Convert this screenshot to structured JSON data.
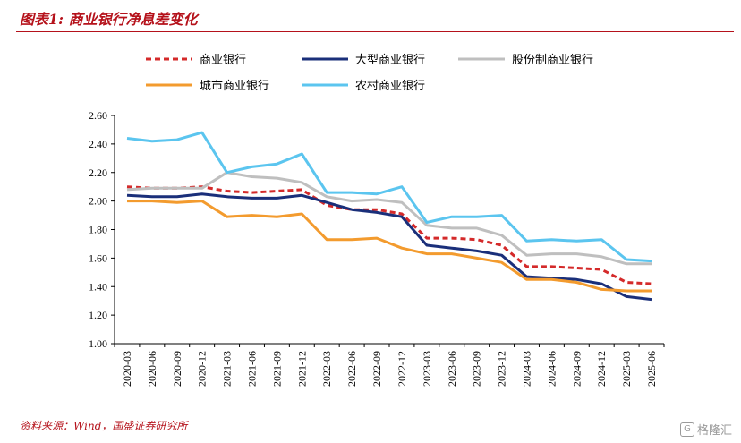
{
  "header": {
    "title": "图表1:  商业银行净息差变化"
  },
  "footer": {
    "source": "资料来源：Wind，国盛证券研究所",
    "watermark": "格隆汇"
  },
  "chart_data": {
    "type": "line",
    "title": "",
    "xlabel": "",
    "ylabel": "",
    "ylim": [
      1.0,
      2.6
    ],
    "yticks": [
      "1.00",
      "1.20",
      "1.40",
      "1.60",
      "1.80",
      "2.00",
      "2.20",
      "2.40",
      "2.60"
    ],
    "grid": false,
    "legend_position": "top",
    "categories": [
      "2020-03",
      "2020-06",
      "2020-09",
      "2020-12",
      "2021-03",
      "2021-06",
      "2021-09",
      "2021-12",
      "2022-03",
      "2022-06",
      "2022-09",
      "2022-12",
      "2023-03",
      "2023-06",
      "2023-09",
      "2023-12",
      "2024-03",
      "2024-06",
      "2024-09",
      "2024-12",
      "2025-03",
      "2025-06"
    ],
    "series": [
      {
        "name": "商业银行",
        "color": "#d42a2a",
        "dash": true,
        "values": [
          2.1,
          2.09,
          2.09,
          2.1,
          2.07,
          2.06,
          2.07,
          2.08,
          1.97,
          1.94,
          1.94,
          1.91,
          1.74,
          1.74,
          1.73,
          1.69,
          1.54,
          1.54,
          1.53,
          1.52,
          1.43,
          1.42
        ]
      },
      {
        "name": "大型商业银行",
        "color": "#1a2f7a",
        "dash": false,
        "values": [
          2.04,
          2.03,
          2.03,
          2.05,
          2.03,
          2.02,
          2.02,
          2.04,
          1.99,
          1.94,
          1.92,
          1.89,
          1.69,
          1.67,
          1.65,
          1.62,
          1.47,
          1.46,
          1.45,
          1.42,
          1.33,
          1.31
        ]
      },
      {
        "name": "股份制商业银行",
        "color": "#bfbfbf",
        "dash": false,
        "values": [
          2.08,
          2.09,
          2.09,
          2.09,
          2.2,
          2.17,
          2.16,
          2.13,
          2.03,
          2.0,
          2.01,
          1.99,
          1.83,
          1.81,
          1.81,
          1.76,
          1.62,
          1.63,
          1.63,
          1.61,
          1.56,
          1.56
        ]
      },
      {
        "name": "城市商业银行",
        "color": "#f39b2e",
        "dash": false,
        "values": [
          2.0,
          2.0,
          1.99,
          2.0,
          1.89,
          1.9,
          1.89,
          1.91,
          1.73,
          1.73,
          1.74,
          1.67,
          1.63,
          1.63,
          1.6,
          1.57,
          1.45,
          1.45,
          1.43,
          1.38,
          1.37,
          1.37
        ]
      },
      {
        "name": "农村商业银行",
        "color": "#5bc5ef",
        "dash": false,
        "values": [
          2.44,
          2.42,
          2.43,
          2.48,
          2.2,
          2.24,
          2.26,
          2.33,
          2.06,
          2.06,
          2.05,
          2.1,
          1.85,
          1.89,
          1.89,
          1.9,
          1.72,
          1.73,
          1.72,
          1.73,
          1.59,
          1.58
        ]
      }
    ]
  }
}
